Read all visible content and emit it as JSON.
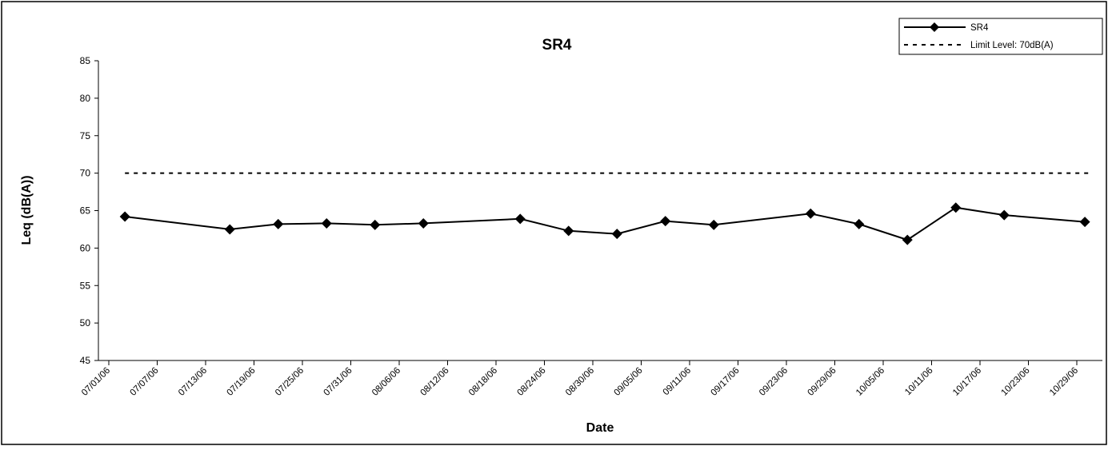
{
  "chart_data": {
    "type": "line",
    "title": "SR4",
    "xlabel": "Date",
    "ylabel": "Leq (dB(A))",
    "ylim": [
      45,
      85
    ],
    "yticks": [
      45,
      50,
      55,
      60,
      65,
      70,
      75,
      80,
      85
    ],
    "xticks": [
      "07/01/06",
      "07/07/06",
      "07/13/06",
      "07/19/06",
      "07/25/06",
      "07/31/06",
      "08/06/06",
      "08/12/06",
      "08/18/06",
      "08/24/06",
      "08/30/06",
      "09/05/06",
      "09/11/06",
      "09/17/06",
      "09/23/06",
      "09/29/06",
      "10/05/06",
      "10/11/06",
      "10/17/06",
      "10/23/06",
      "10/29/06"
    ],
    "xlim": [
      "07/01/06",
      "11/01/06"
    ],
    "grid": false,
    "legend_position": "top-right",
    "series": [
      {
        "name": "SR4",
        "style": "solid-diamond",
        "color": "#000000",
        "x": [
          "07/03/06",
          "07/16/06",
          "07/22/06",
          "07/28/06",
          "08/03/06",
          "08/09/06",
          "08/21/06",
          "08/27/06",
          "09/02/06",
          "09/08/06",
          "09/14/06",
          "09/26/06",
          "10/02/06",
          "10/08/06",
          "10/14/06",
          "10/20/06",
          "10/30/06"
        ],
        "values": [
          64.2,
          62.5,
          63.2,
          63.3,
          63.1,
          63.3,
          63.9,
          62.3,
          61.9,
          63.6,
          63.1,
          64.6,
          63.2,
          61.1,
          65.4,
          64.4,
          63.5
        ]
      },
      {
        "name": "Limit Level: 70dB(A)",
        "style": "dashed",
        "color": "#000000",
        "x": [
          "07/03/06",
          "10/31/06"
        ],
        "values": [
          70,
          70
        ]
      }
    ]
  }
}
